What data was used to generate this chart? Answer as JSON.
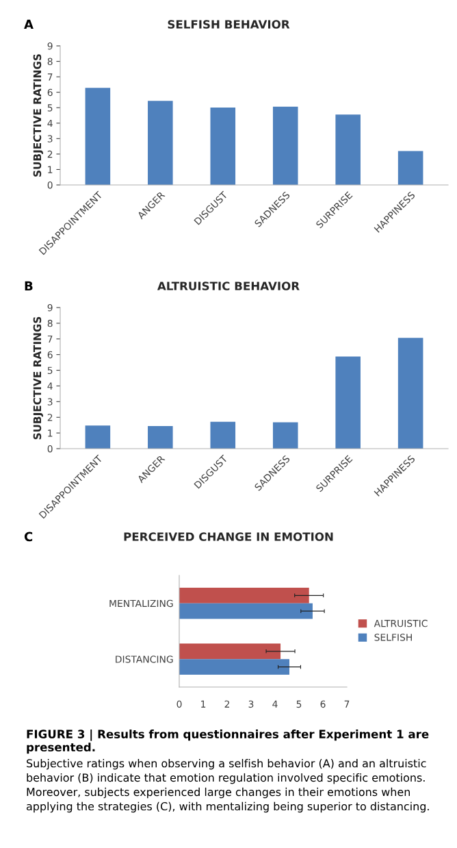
{
  "chart_data": [
    {
      "type": "bar",
      "title": "SELFISH BEHAVIOR",
      "ylabel": "SUBJECTIVE RATINGS",
      "annotations": [
        "A"
      ],
      "categories": [
        "DISAPPOINTMENT",
        "ANGER",
        "DISGUST",
        "SADNESS",
        "SURPRISE",
        "HAPPINESS"
      ],
      "values": [
        6.28,
        5.44,
        5.01,
        5.07,
        4.56,
        2.19
      ],
      "color": "#4f81bd",
      "ylim": [
        0,
        9
      ],
      "yticks": [
        0,
        1,
        2,
        3,
        4,
        5,
        6,
        7,
        8,
        9
      ],
      "grid": false,
      "legend": false
    },
    {
      "type": "bar",
      "title": "ALTRUISTIC BEHAVIOR",
      "ylabel": "SUBJECTIVE RATINGS",
      "annotations": [
        "B"
      ],
      "categories": [
        "DISAPPOINTMENT",
        "ANGER",
        "DISGUST",
        "SADNESS",
        "SURPRISE",
        "HAPPINESS"
      ],
      "values": [
        1.47,
        1.44,
        1.72,
        1.68,
        5.88,
        7.07
      ],
      "color": "#4f81bd",
      "ylim": [
        0,
        9
      ],
      "yticks": [
        0,
        1,
        2,
        3,
        4,
        5,
        6,
        7,
        8,
        9
      ],
      "grid": false,
      "legend": false
    },
    {
      "type": "bar",
      "orientation": "horizontal",
      "title": "PERCEIVED CHANGE IN EMOTION",
      "annotations": [
        "C",
        "FIGURE 3 | Results from questionnaires after Experiment 1 are presented.",
        "Subjective ratings when observing a selfish behavior (A) and an altruistic behavior (B) indicate that emotion regulation involved specific emotions. Moreover, subjects experienced large changes in their emotions when applying the strategies (C), with mentalizing being superior to distancing."
      ],
      "categories": [
        "MENTALIZING",
        "DISTANCING"
      ],
      "series": [
        {
          "name": "ALTRUISTIC",
          "color": "#c0504d",
          "values": [
            5.42,
            4.23
          ],
          "errors": [
            0.6,
            0.6
          ]
        },
        {
          "name": "SELFISH",
          "color": "#4f81bd",
          "values": [
            5.57,
            4.6
          ],
          "errors": [
            0.49,
            0.47
          ]
        }
      ],
      "xlim": [
        0,
        7
      ],
      "xticks": [
        0,
        1,
        2,
        3,
        4,
        5,
        6,
        7
      ],
      "grid": false,
      "legend": "right"
    }
  ]
}
